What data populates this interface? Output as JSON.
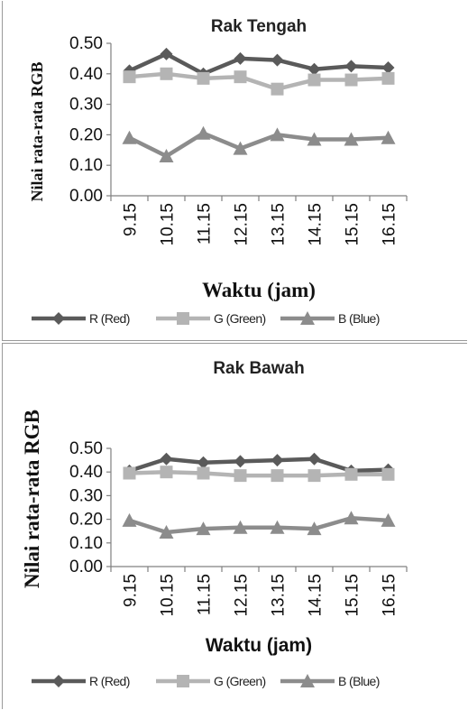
{
  "colors": {
    "R": "#5a5a5a",
    "G": "#b4b4b4",
    "B": "#8c8c8c",
    "axis": "#808080"
  },
  "chart_data": [
    {
      "type": "line",
      "title": "Rak Tengah",
      "xlabel": "Waktu (jam)",
      "ylabel": "Nilai rata-rata RGB",
      "ylim": [
        0,
        0.5
      ],
      "yticks": [
        "0.00",
        "0.10",
        "0.20",
        "0.30",
        "0.40",
        "0.50"
      ],
      "categories": [
        "9.15",
        "10.15",
        "11.15",
        "12.15",
        "13.15",
        "14.15",
        "15.15",
        "16.15"
      ],
      "legend_position": "bottom",
      "series": [
        {
          "name": "R (Red)",
          "marker": "diamond",
          "values": [
            0.41,
            0.465,
            0.4,
            0.45,
            0.445,
            0.415,
            0.425,
            0.42
          ]
        },
        {
          "name": "G (Green)",
          "marker": "square",
          "values": [
            0.39,
            0.4,
            0.385,
            0.39,
            0.35,
            0.38,
            0.38,
            0.385
          ]
        },
        {
          "name": "B (Blue)",
          "marker": "triangle",
          "values": [
            0.19,
            0.13,
            0.205,
            0.155,
            0.2,
            0.185,
            0.185,
            0.19
          ]
        }
      ]
    },
    {
      "type": "line",
      "title": "Rak Bawah",
      "xlabel": "Waktu (jam)",
      "ylabel": "Nilai rata-rata RGB",
      "ylim": [
        0,
        0.5
      ],
      "yticks": [
        "0.00",
        "0.10",
        "0.20",
        "0.30",
        "0.40",
        "0.50"
      ],
      "categories": [
        "9.15",
        "10.15",
        "11.15",
        "12.15",
        "13.15",
        "14.15",
        "15.15",
        "16.15"
      ],
      "legend_position": "bottom",
      "series": [
        {
          "name": "R (Red)",
          "marker": "diamond",
          "values": [
            0.405,
            0.455,
            0.44,
            0.445,
            0.45,
            0.455,
            0.405,
            0.41
          ]
        },
        {
          "name": "G (Green)",
          "marker": "square",
          "values": [
            0.395,
            0.4,
            0.395,
            0.385,
            0.385,
            0.385,
            0.39,
            0.39
          ]
        },
        {
          "name": "B (Blue)",
          "marker": "triangle",
          "values": [
            0.195,
            0.145,
            0.16,
            0.165,
            0.165,
            0.16,
            0.205,
            0.195
          ]
        }
      ]
    }
  ]
}
